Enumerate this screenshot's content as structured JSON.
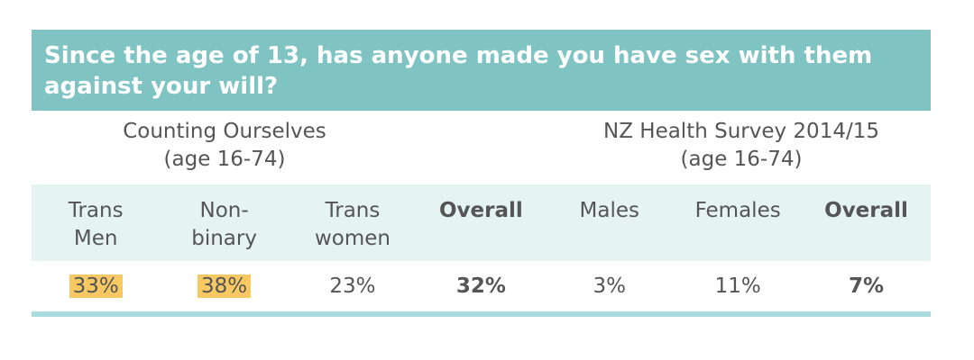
{
  "title": "Since the age of 13, has anyone made you have sex with them against your will?",
  "groups": [
    {
      "label": "Counting Ourselves\n(age 16-74)"
    },
    {
      "label": "NZ Health Survey 2014/15\n(age 16-74)"
    }
  ],
  "table": {
    "headers": [
      "Trans\nMen",
      "Non-\nbinary",
      "Trans\nwomen",
      "Overall",
      "Males",
      "Females",
      "Overall"
    ],
    "rows": [
      [
        "33%",
        "38%",
        "23%",
        "32%",
        "3%",
        "11%",
        "7%"
      ]
    ]
  }
}
